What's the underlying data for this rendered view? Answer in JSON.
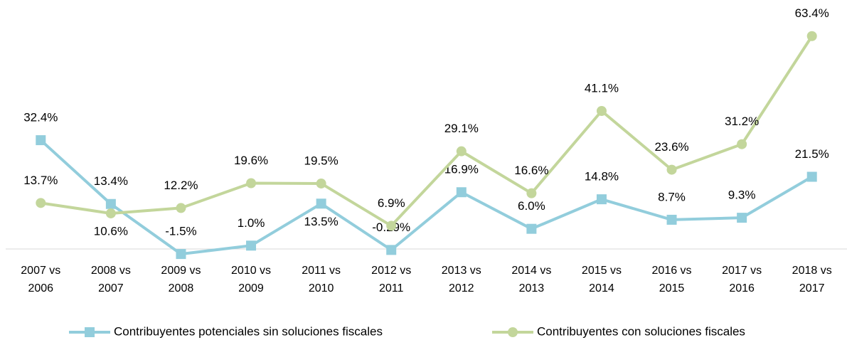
{
  "chart_data": {
    "type": "line",
    "categories": [
      "2007 vs 2006",
      "2008 vs 2007",
      "2009 vs 2008",
      "2010 vs 2009",
      "2011 vs 2010",
      "2012 vs 2011",
      "2013 vs 2012",
      "2014 vs 2013",
      "2015 vs 2014",
      "2016 vs 2015",
      "2017 vs 2016",
      "2018 vs 2017"
    ],
    "series": [
      {
        "name": "Contribuyentes potenciales sin soluciones fiscales",
        "color": "#92cddc",
        "marker": "square",
        "values": [
          32.4,
          13.4,
          -1.5,
          1.0,
          13.5,
          -0.29,
          16.9,
          6.0,
          14.8,
          8.7,
          9.3,
          21.5
        ],
        "value_labels": [
          "32.4%",
          "13.4%",
          "-1.5%",
          "1.0%",
          "13.5%",
          "-0.29%",
          "16.9%",
          "6.0%",
          "14.8%",
          "8.7%",
          "9.3%",
          "21.5%"
        ]
      },
      {
        "name": "Contribuyentes con soluciones fiscales",
        "color": "#c3d69b",
        "marker": "circle",
        "values": [
          13.7,
          10.6,
          12.2,
          19.6,
          19.5,
          6.9,
          29.1,
          16.6,
          41.1,
          23.6,
          31.2,
          63.4
        ],
        "value_labels": [
          "13.7%",
          "10.6%",
          "12.2%",
          "19.6%",
          "19.5%",
          "6.9%",
          "29.1%",
          "16.6%",
          "41.1%",
          "23.6%",
          "31.2%",
          "63.4%"
        ]
      }
    ],
    "ylim": [
      -5,
      70
    ],
    "legend": "bottom"
  }
}
